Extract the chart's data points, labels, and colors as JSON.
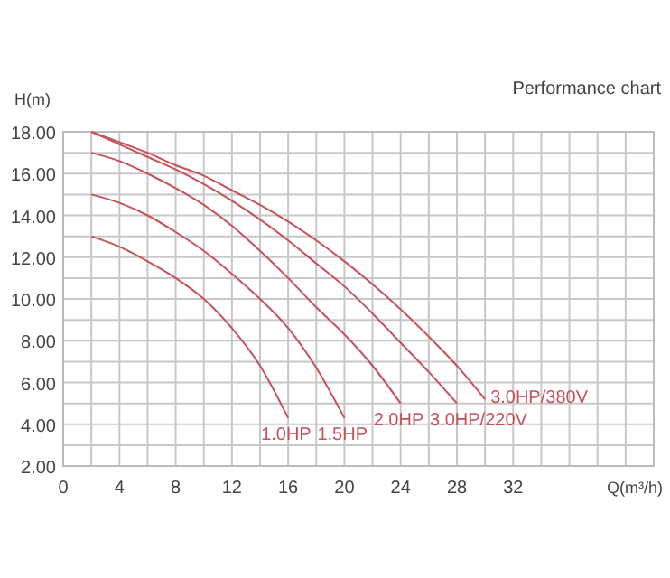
{
  "chart_data": {
    "type": "line",
    "title": "Performance chart",
    "xlabel": "Q(m³/h)",
    "ylabel": "H(m)",
    "xlim": [
      0,
      42
    ],
    "ylim": [
      2,
      18
    ],
    "xticks": [
      0,
      {
        "value": 2,
        "label": null
      },
      4,
      {
        "value": 6,
        "label": null
      },
      8,
      {
        "value": 10,
        "label": null
      },
      12,
      {
        "value": 14,
        "label": null
      },
      16,
      {
        "value": 18,
        "label": null
      },
      20,
      {
        "value": 22,
        "label": null
      },
      24,
      {
        "value": 26,
        "label": null
      },
      28,
      {
        "value": 30,
        "label": null
      },
      32,
      {
        "value": 34,
        "label": null
      },
      {
        "value": 36,
        "label": null
      },
      {
        "value": 38,
        "label": null
      },
      {
        "value": 40,
        "label": null
      },
      {
        "value": 42,
        "label": null
      }
    ],
    "yticks": [
      {
        "value": 2,
        "label": "2.00"
      },
      {
        "value": 3,
        "label": null
      },
      {
        "value": 4,
        "label": "4.00"
      },
      {
        "value": 5,
        "label": null
      },
      {
        "value": 6,
        "label": "6.00"
      },
      {
        "value": 7,
        "label": null
      },
      {
        "value": 8,
        "label": "8.00"
      },
      {
        "value": 9,
        "label": null
      },
      {
        "value": 10,
        "label": "10.00"
      },
      {
        "value": 11,
        "label": null
      },
      {
        "value": 12,
        "label": "12.00"
      },
      {
        "value": 13,
        "label": null
      },
      {
        "value": 14,
        "label": "14.00"
      },
      {
        "value": 15,
        "label": null
      },
      {
        "value": 16,
        "label": "16.00"
      },
      {
        "value": 17,
        "label": null
      },
      {
        "value": 18,
        "label": "18.00"
      }
    ],
    "grid": true,
    "marker": "none",
    "line_style": "solid",
    "series": [
      {
        "name": "1.0HP",
        "color": "#c8505a",
        "x": [
          2,
          4,
          6,
          8,
          10,
          12,
          14,
          16
        ],
        "values": [
          13,
          12.5,
          11.8,
          11,
          10,
          8.6,
          6.8,
          4.3
        ]
      },
      {
        "name": "1.5HP",
        "color": "#c8505a",
        "x": [
          2,
          4,
          6,
          8,
          10,
          12,
          14,
          16,
          18,
          20
        ],
        "values": [
          15,
          14.6,
          14,
          13.2,
          12.3,
          11.2,
          10,
          8.6,
          6.7,
          4.3
        ]
      },
      {
        "name": "2.0HP",
        "color": "#c8505a",
        "x": [
          2,
          4,
          6,
          8,
          10,
          12,
          14,
          16,
          18,
          20,
          22,
          24
        ],
        "values": [
          17,
          16.6,
          16,
          15.3,
          14.5,
          13.5,
          12.3,
          11,
          9.6,
          8.3,
          6.8,
          5
        ]
      },
      {
        "name": "3.0HP/220V",
        "color": "#c8505a",
        "x": [
          2,
          4,
          6,
          8,
          10,
          12,
          14,
          16,
          18,
          20,
          22,
          24,
          26,
          28
        ],
        "values": [
          18,
          17.4,
          16.8,
          16.2,
          15.5,
          14.7,
          13.8,
          12.8,
          11.7,
          10.6,
          9.3,
          7.9,
          6.5,
          5
        ]
      },
      {
        "name": "3.0HP/380V",
        "color": "#c8505a",
        "x": [
          2,
          4,
          6,
          8,
          10,
          12,
          14,
          16,
          18,
          20,
          22,
          24,
          26,
          28,
          30
        ],
        "values": [
          18,
          17.5,
          17,
          16.4,
          15.9,
          15.2,
          14.5,
          13.7,
          12.8,
          11.8,
          10.7,
          9.5,
          8.2,
          6.8,
          5.2
        ]
      }
    ]
  }
}
